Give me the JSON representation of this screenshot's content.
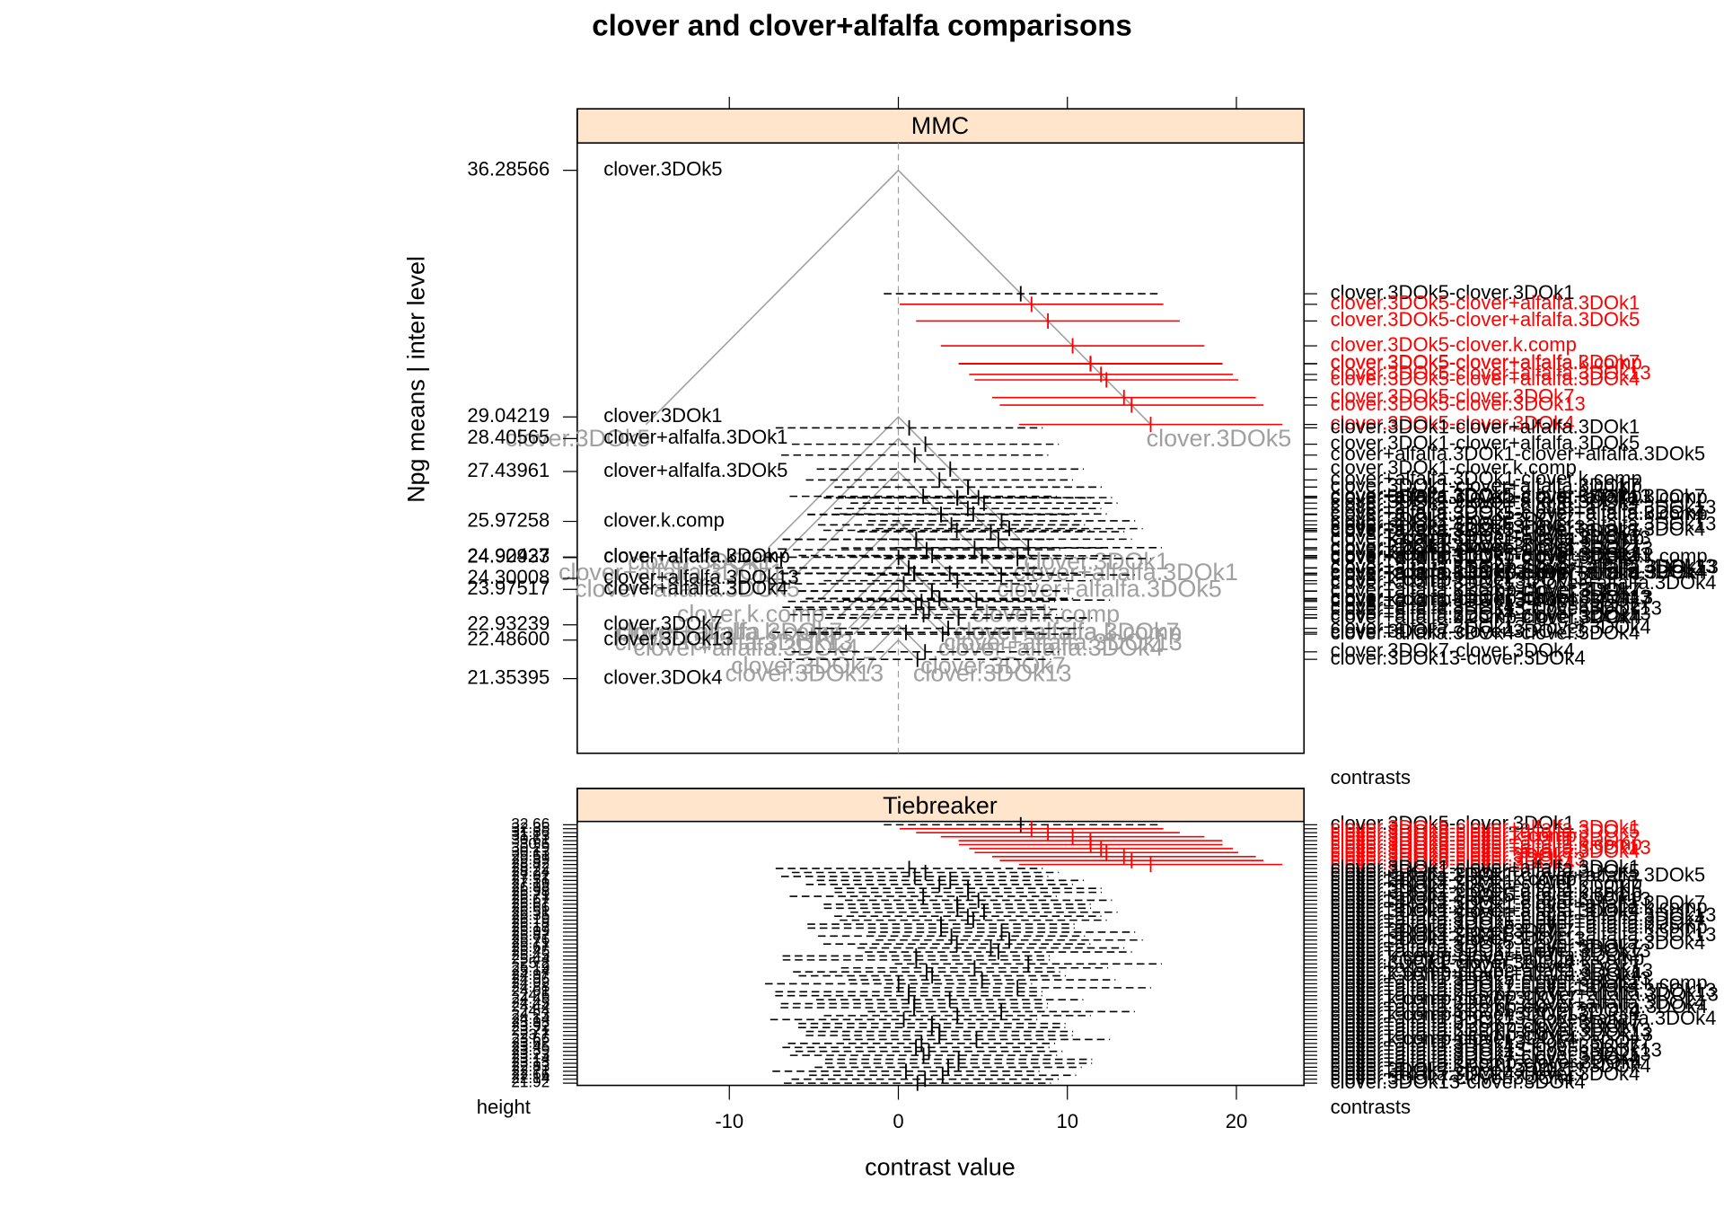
{
  "chart_data": {
    "type": "mmc",
    "title": "clover and clover+alfalfa comparisons",
    "x_label": "contrast value",
    "y_label": "Npg means  |  inter level",
    "panels": [
      "MMC",
      "Tiebreaker"
    ],
    "height_label": "height",
    "contrasts_label": "contrasts",
    "xlim": [
      -19,
      24
    ],
    "xticks": [
      -10,
      0,
      10,
      20
    ],
    "ylim": [
      19.16,
      37.09
    ],
    "color": "#000000",
    "sig_color": "#ff0000",
    "iso_color": "#a0a0a0",
    "strip_color": "#ffe5cc",
    "groups": {
      "names": [
        "clover.3DOk5",
        "clover.3DOk1",
        "clover+alfalfa.3DOk1",
        "clover+alfalfa.3DOk5",
        "clover.k.comp",
        "clover+alfalfa.3DOk7",
        "clover+alfalfa.k.comp",
        "clover+alfalfa.3DOk13",
        "clover+alfalfa.3DOk4",
        "clover.3DOk7",
        "clover.3DOk13",
        "clover.3DOk4"
      ],
      "means": [
        36.28566,
        29.04219,
        28.40565,
        27.43961,
        25.97258,
        24.92427,
        24.90933,
        24.30008,
        23.97517,
        22.93239,
        {
          "value": 22.486,
          "label": "22.48600"
        },
        21.35395
      ]
    },
    "contrasts": {
      "names": [
        "clover.3DOk5-clover.3DOk1",
        "clover.3DOk5-clover+alfalfa.3DOk1",
        "clover.3DOk5-clover+alfalfa.3DOk5",
        "clover.3DOk5-clover.k.comp",
        "clover.3DOk5-clover+alfalfa.3DOk7",
        "clover.3DOk5-clover+alfalfa.k.comp",
        "clover.3DOk5-clover+alfalfa.3DOk13",
        "clover.3DOk5-clover+alfalfa.3DOk4",
        "clover.3DOk5-clover.3DOk7",
        "clover.3DOk5-clover.3DOk13",
        "clover.3DOk5-clover.3DOk4",
        "clover.3DOk1-clover+alfalfa.3DOk1",
        "clover.3DOk1-clover+alfalfa.3DOk5",
        "clover+alfalfa.3DOk1-clover+alfalfa.3DOk5",
        "clover.3DOk1-clover.k.comp",
        "clover+alfalfa.3DOk1-clover.k.comp",
        "clover.3DOk1-clover+alfalfa.3DOk7",
        "clover.3DOk1-clover+alfalfa.k.comp",
        "clover+alfalfa.3DOk5-clover.k.comp",
        "clover.3DOk1-clover+alfalfa.3DOk13",
        "clover+alfalfa.3DOk1-clover+alfalfa.3DOk7",
        "clover+alfalfa.3DOk1-clover+alfalfa.k.comp",
        "clover.3DOk1-clover+alfalfa.3DOk4",
        "clover+alfalfa.3DOk1-clover+alfalfa.3DOk13",
        "clover+alfalfa.3DOk1-clover+alfalfa.3DOk4",
        "clover+alfalfa.3DOk5-clover+alfalfa.3DOk7",
        "clover+alfalfa.3DOk5-clover+alfalfa.k.comp",
        "clover.3DOk1-clover.3DOk7",
        "clover+alfalfa.3DOk5-clover+alfalfa.3DOk13",
        "clover.3DOk1-clover.3DOk13",
        "clover+alfalfa.3DOk5-clover+alfalfa.3DOk4",
        "clover+alfalfa.3DOk1-clover.3DOk7",
        "clover+alfalfa.3DOk1-clover.3DOk13",
        "clover.k.comp-clover+alfalfa.3DOk7",
        "clover.k.comp-clover+alfalfa.k.comp",
        "clover.3DOk1-clover.3DOk4",
        "clover+alfalfa.3DOk5-clover.3DOk7",
        "clover.k.comp-clover+alfalfa.3DOk13",
        "clover.k.comp-clover+alfalfa.3DOk4",
        "clover+alfalfa.3DOk5-clover.3DOk13",
        "clover+alfalfa.3DOk7-clover+alfalfa.k.comp",
        "clover+alfalfa.3DOk1-clover.3DOk4",
        "clover+alfalfa.3DOk7-clover+alfalfa.3DOk13",
        "clover+alfalfa.k.comp-clover+alfalfa.3DOk13",
        "clover.k.comp-clover.3DOk7",
        "clover+alfalfa.3DOk7-clover+alfalfa.3DOk4",
        "clover+alfalfa.k.comp-clover+alfalfa.3DOk4",
        "clover+alfalfa.3DOk5-clover.3DOk4",
        "clover.k.comp-clover.3DOk13",
        "clover+alfalfa.3DOk13-clover+alfalfa.3DOk4",
        "clover+alfalfa.3DOk7-clover.3DOk7",
        "clover+alfalfa.k.comp-clover.3DOk7",
        "clover+alfalfa.3DOk7-clover.3DOk13",
        "clover+alfalfa.k.comp-clover.3DOk13",
        "clover.k.comp-clover.3DOk4",
        "clover+alfalfa.3DOk13-clover.3DOk7",
        "clover+alfalfa.3DOk4-clover.3DOk7",
        "clover+alfalfa.3DOk13-clover.3DOk13",
        "clover+alfalfa.3DOk4-clover.3DOk13",
        "clover+alfalfa.3DOk7-clover.3DOk4",
        "clover+alfalfa.k.comp-clover.3DOk4",
        "clover+alfalfa.3DOk13-clover.3DOk4",
        "clover.3DOk7-clover.3DOk13",
        "clover+alfalfa.3DOk4-clover.3DOk4",
        "clover.3DOk7-clover.3DOk4",
        "clover.3DOk13-clover.3DOk4"
      ],
      "estimates": [
        7.24,
        7.88,
        8.85,
        10.31,
        11.36,
        11.38,
        11.99,
        12.31,
        13.35,
        13.8,
        14.93,
        0.64,
        1.6,
        0.97,
        3.07,
        2.43,
        4.12,
        4.13,
        1.47,
        4.74,
        3.48,
        3.5,
        5.07,
        4.11,
        4.43,
        2.52,
        2.53,
        6.11,
        3.14,
        6.56,
        3.46,
        5.47,
        5.92,
        1.05,
        1.06,
        7.69,
        4.51,
        1.67,
        2.0,
        4.95,
        0.01,
        7.05,
        0.62,
        0.61,
        3.04,
        0.95,
        0.93,
        6.09,
        3.49,
        0.32,
        1.99,
        1.98,
        2.44,
        2.42,
        4.62,
        1.37,
        1.04,
        1.81,
        1.49,
        3.57,
        3.56,
        2.95,
        0.45,
        2.62,
        1.58,
        1.13
      ],
      "errors": [
        8.1,
        7.8,
        7.8,
        7.8,
        7.8,
        7.8,
        7.8,
        7.8,
        7.8,
        7.8,
        7.8,
        7.9,
        7.9,
        7.9,
        7.9,
        7.9,
        7.9,
        7.9,
        7.9,
        7.9,
        7.9,
        7.9,
        7.9,
        7.9,
        7.9,
        7.9,
        7.9,
        7.9,
        7.9,
        7.9,
        7.9,
        7.9,
        7.9,
        7.9,
        7.9,
        7.9,
        7.9,
        7.9,
        7.9,
        7.9,
        7.9,
        7.9,
        7.9,
        7.9,
        7.9,
        7.9,
        7.9,
        7.9,
        7.9,
        7.9,
        7.9,
        7.9,
        7.9,
        7.9,
        7.9,
        7.9,
        7.9,
        7.9,
        7.9,
        7.9,
        7.9,
        7.9,
        7.9,
        7.9,
        7.9,
        7.9
      ],
      "heights": [
        32.66,
        32.35,
        31.86,
        31.13,
        30.61,
        30.6,
        30.29,
        30.13,
        29.61,
        29.39,
        28.82,
        28.72,
        28.24,
        27.92,
        27.51,
        27.19,
        26.98,
        26.98,
        26.71,
        26.67,
        26.67,
        26.66,
        26.51,
        26.35,
        26.19,
        26.18,
        26.17,
        25.99,
        25.87,
        25.76,
        25.71,
        25.67,
        25.45,
        25.45,
        25.44,
        25.2,
        25.19,
        25.14,
        24.97,
        24.96,
        24.92,
        24.88,
        24.61,
        24.6,
        24.45,
        24.45,
        24.44,
        24.4,
        24.23,
        24.14,
        23.93,
        23.92,
        23.71,
        23.7,
        23.66,
        23.62,
        23.45,
        23.39,
        23.23,
        23.14,
        23.13,
        22.83,
        22.71,
        22.66,
        22.14,
        21.92
      ]
    }
  }
}
